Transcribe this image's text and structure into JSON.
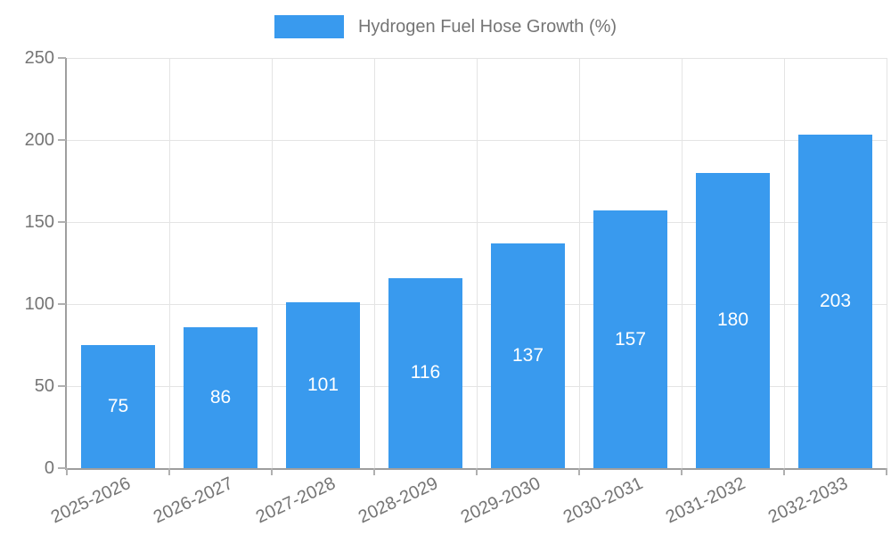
{
  "legend": {
    "items": [
      {
        "label": "Hydrogen Fuel Hose Growth (%)",
        "color": "#399AEE"
      }
    ]
  },
  "colors": {
    "bar": "#399AEE",
    "axis": "#9E9E9E",
    "grid": "#E4E4E4",
    "tick": "#B0B0B0",
    "label": "#757575",
    "value_label": "#FFFFFF",
    "background": "#FFFFFF"
  },
  "chart_data": {
    "type": "bar",
    "title": "Hydrogen Fuel Hose Growth (%)",
    "categories": [
      "2025-2026",
      "2026-2027",
      "2027-2028",
      "2028-2029",
      "2029-2030",
      "2030-2031",
      "2031-2032",
      "2032-2033"
    ],
    "values": [
      75,
      86,
      101,
      116,
      137,
      157,
      180,
      203
    ],
    "series": [
      {
        "name": "Hydrogen Fuel Hose Growth (%)",
        "values": [
          75,
          86,
          101,
          116,
          137,
          157,
          180,
          203
        ]
      }
    ],
    "xlabel": "",
    "ylabel": "",
    "ylim": [
      0,
      250
    ],
    "yticks": [
      0,
      50,
      100,
      150,
      200,
      250
    ],
    "grid": true,
    "legend_position": "top",
    "value_labels": "inside-center",
    "x_label_rotation_deg": -25
  }
}
